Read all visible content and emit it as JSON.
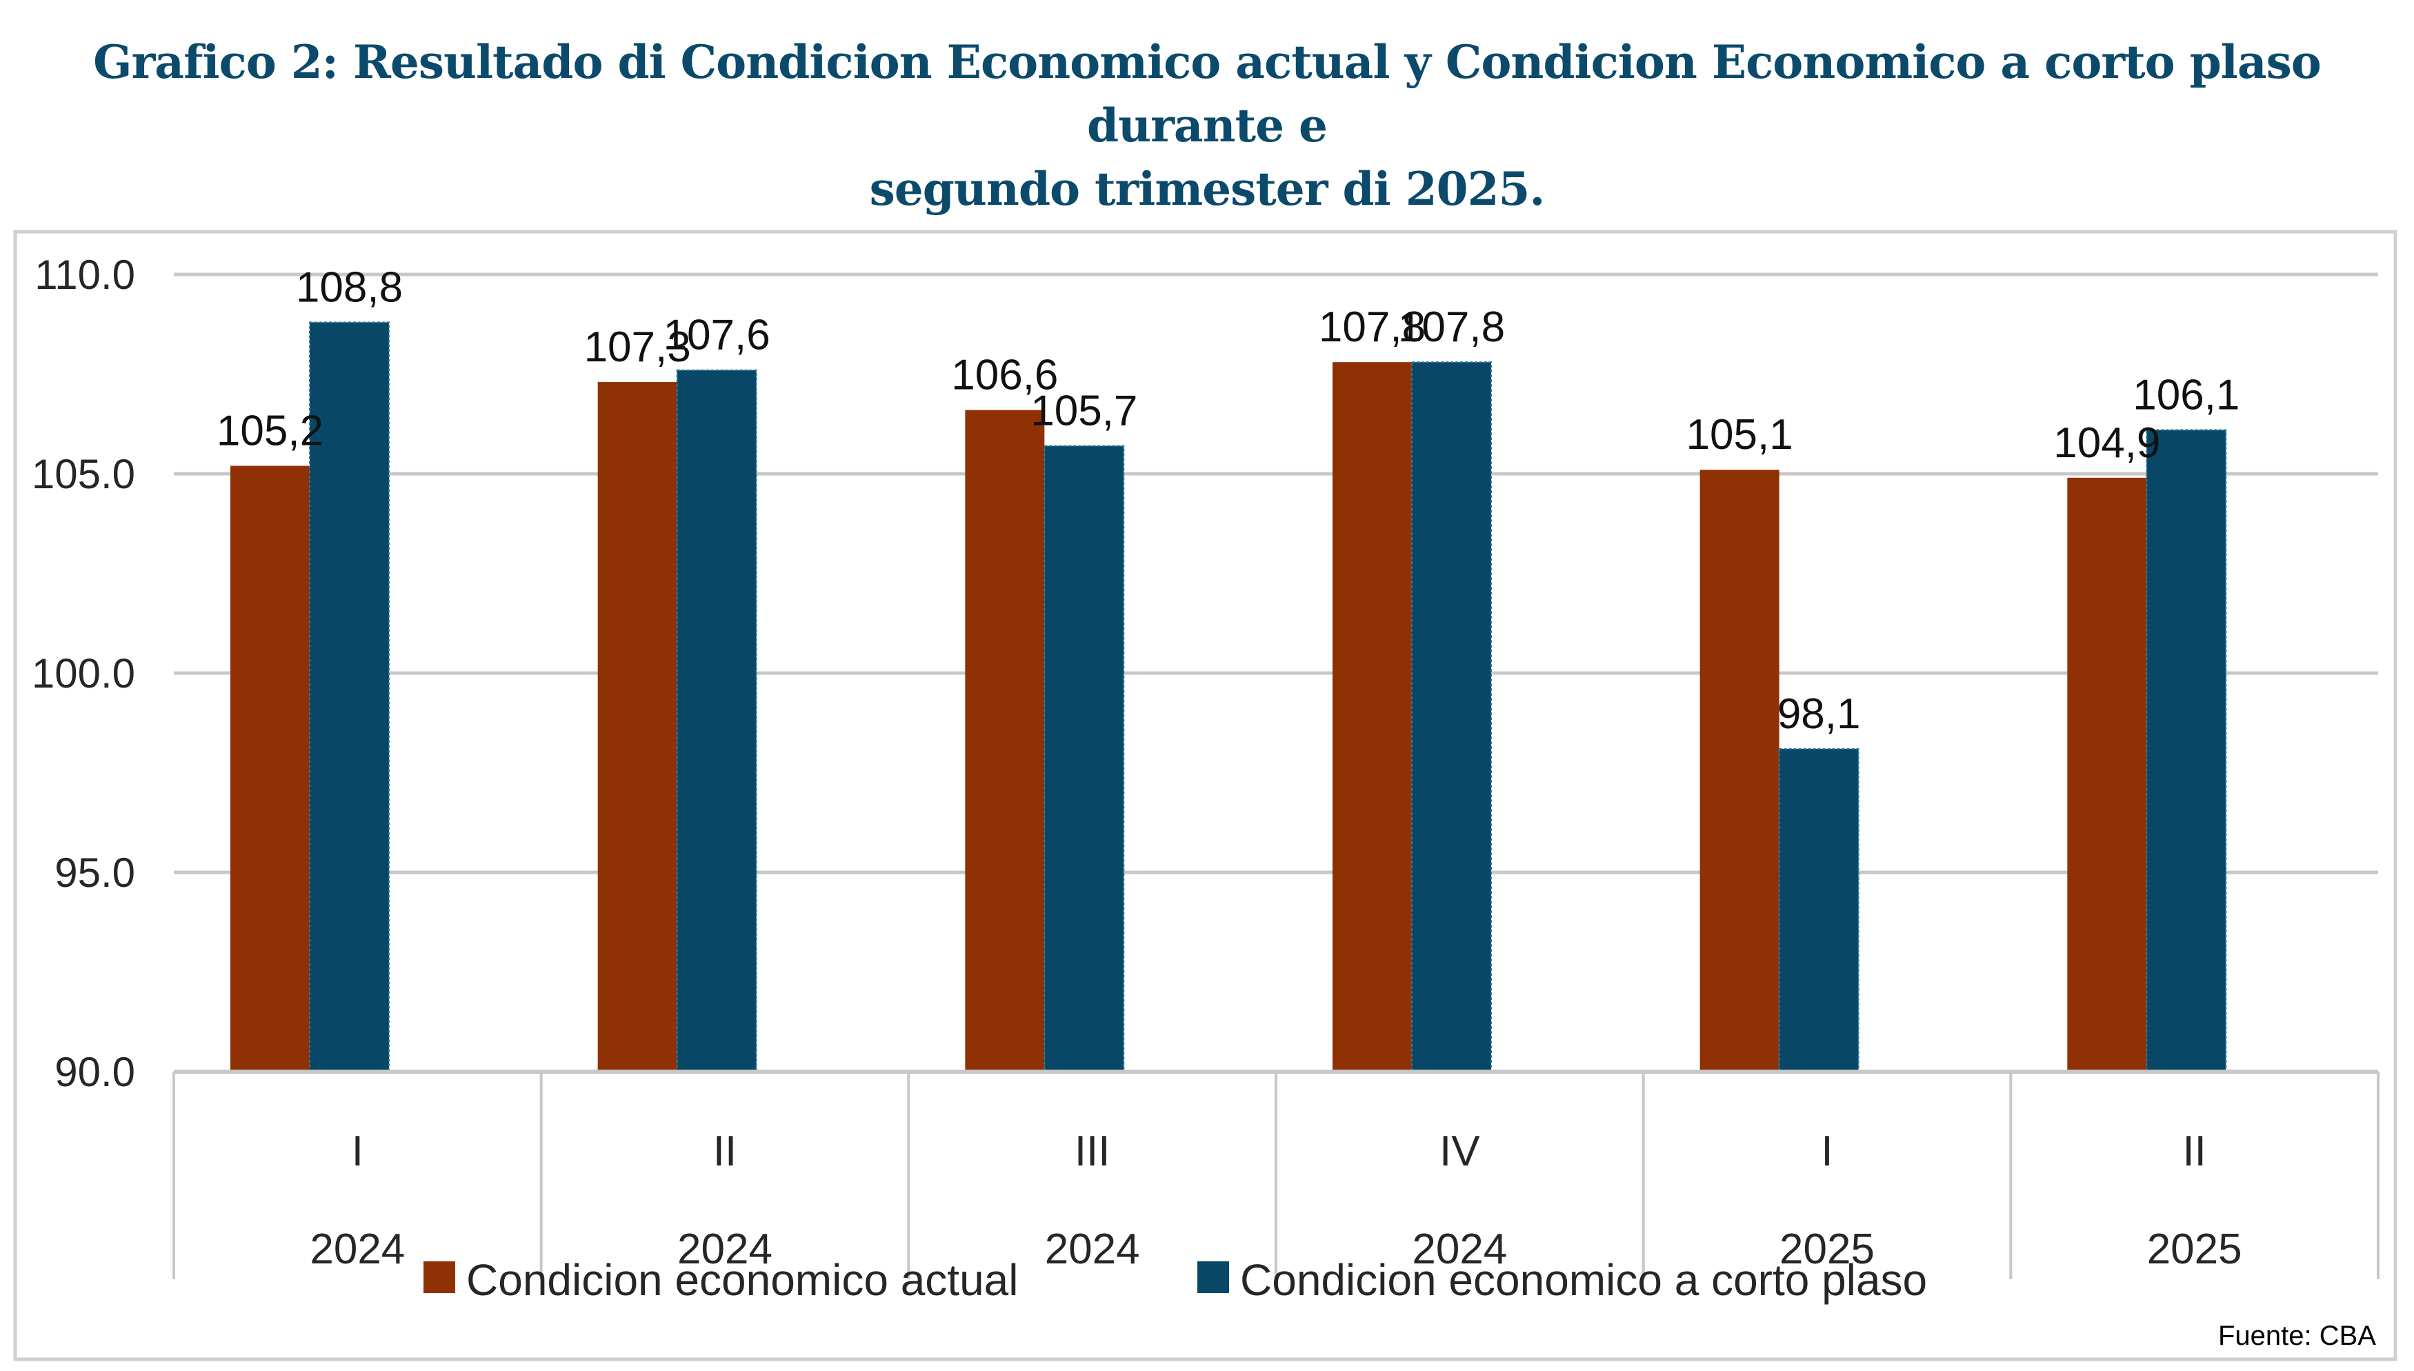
{
  "title": {
    "line1": "Grafico 2: Resultado di Condicion Economico actual y Condicion Economico a corto plaso durante e",
    "line2": "segundo trimester di 2025."
  },
  "source": "Fuente: CBA",
  "colors": {
    "title": "#0b4a6b",
    "series_actual": "#8f3104",
    "series_corto": "#084766",
    "gridline": "#c8c8c8",
    "border": "#cfcfcf"
  },
  "chart_data": {
    "type": "bar",
    "title": "Grafico 2: Resultado di Condicion Economico actual y Condicion Economico a corto plaso durante e segundo trimester di 2025.",
    "xlabel": "",
    "ylabel": "",
    "categories": [
      {
        "quarter": "I",
        "year": "2024"
      },
      {
        "quarter": "II",
        "year": "2024"
      },
      {
        "quarter": "III",
        "year": "2024"
      },
      {
        "quarter": "IV",
        "year": "2024"
      },
      {
        "quarter": "I",
        "year": "2025"
      },
      {
        "quarter": "II",
        "year": "2025"
      }
    ],
    "series": [
      {
        "name": "Condicion economico actual",
        "color": "#8f3104",
        "values": [
          105.2,
          107.3,
          106.6,
          107.8,
          105.1,
          104.9
        ],
        "labels": [
          "105,2",
          "107,3",
          "106,6",
          "107,8",
          "105,1",
          "104,9"
        ]
      },
      {
        "name": "Condicion economico a corto plaso",
        "color": "#084766",
        "values": [
          108.8,
          107.6,
          105.7,
          107.8,
          98.1,
          106.1
        ],
        "labels": [
          "108,8",
          "107,6",
          "105,7",
          "107,8",
          "98,1",
          "106,1"
        ]
      }
    ],
    "ylim": [
      90,
      110
    ],
    "yticks": [
      90,
      95,
      100,
      105,
      110
    ],
    "ytick_labels": [
      "90.0",
      "95.0",
      "100.0",
      "105.0",
      "110.0"
    ],
    "grid": true,
    "legend": "bottom-center"
  }
}
